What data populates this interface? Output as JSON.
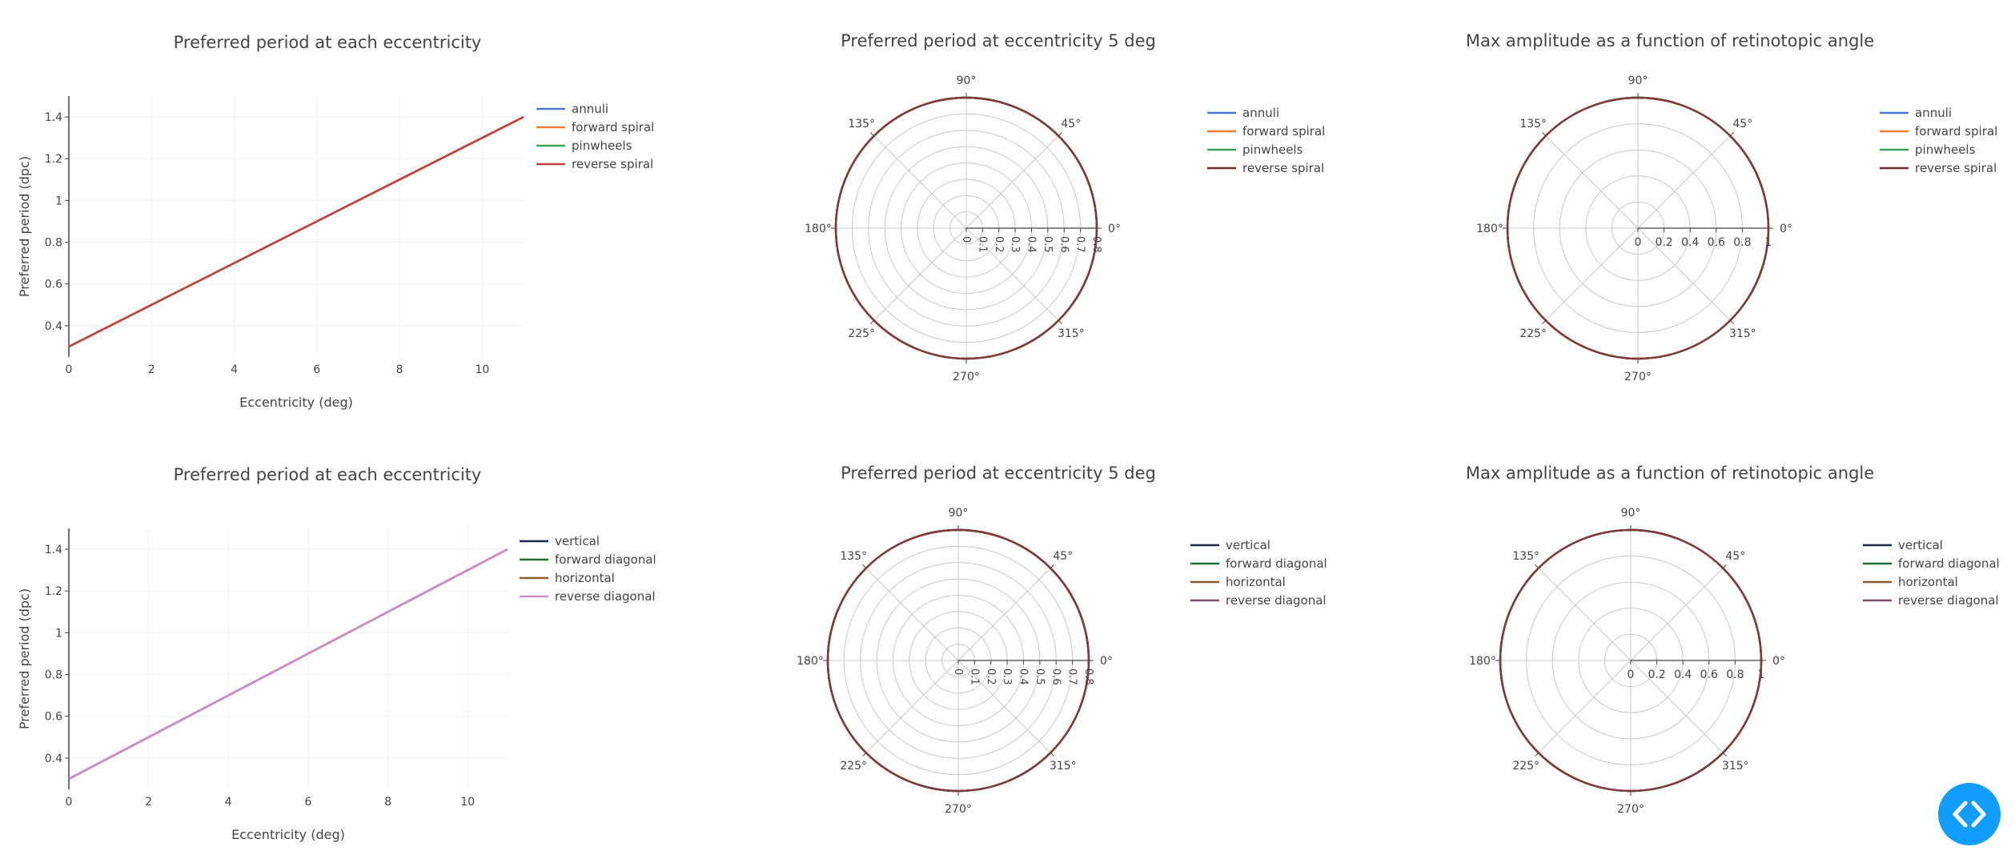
{
  "colors": {
    "grid_cart": "#eeeeee",
    "grid_polar": "#c8c8c8",
    "axis": "#444444",
    "circle_edge": "#7f3b3b",
    "code_button": "#119dff"
  },
  "code_button": {
    "icon": "code-brackets-icon"
  },
  "chart_data": [
    {
      "type": "line",
      "title": "Preferred period at each eccentricity",
      "xlabel": "Eccentricity (deg)",
      "ylabel": "Preferred period (dpc)",
      "xlim": [
        0,
        11
      ],
      "ylim": [
        0.25,
        1.5
      ],
      "xticks": [
        "0",
        "2",
        "4",
        "6",
        "8",
        "10"
      ],
      "yticks": [
        "0.4",
        "0.6",
        "0.8",
        "1",
        "1.2",
        "1.4"
      ],
      "grid": true,
      "legend": "right",
      "x": [
        0,
        11
      ],
      "series": [
        {
          "name": "annuli",
          "color": "#4c72d8",
          "values": [
            0.3,
            1.4
          ]
        },
        {
          "name": "forward spiral",
          "color": "#ee7d32",
          "values": [
            0.3,
            1.4
          ]
        },
        {
          "name": "pinwheels",
          "color": "#3fa45a",
          "values": [
            0.3,
            1.4
          ]
        },
        {
          "name": "reverse spiral",
          "color": "#c3413b",
          "values": [
            0.3,
            1.4
          ]
        }
      ]
    },
    {
      "type": "polar",
      "title": "Preferred period at eccentricity 5 deg",
      "radial_ticks": [
        "0",
        "0.1",
        "0.2",
        "0.3",
        "0.4",
        "0.5",
        "0.6",
        "0.7",
        "0.8"
      ],
      "radial_range": [
        0,
        0.8
      ],
      "angular_ticks": [
        "0°",
        "45°",
        "90°",
        "135°",
        "180°",
        "225°",
        "270°",
        "315°"
      ],
      "legend": "right",
      "series": [
        {
          "name": "annuli",
          "color": "#4c72d8",
          "r": 0.8
        },
        {
          "name": "forward spiral",
          "color": "#ee7d32",
          "r": 0.8
        },
        {
          "name": "pinwheels",
          "color": "#3fa45a",
          "r": 0.8
        },
        {
          "name": "reverse spiral",
          "color": "#6b2f2f",
          "r": 0.8
        }
      ]
    },
    {
      "type": "polar",
      "title": "Max amplitude as a function of retinotopic angle",
      "radial_ticks": [
        "0",
        "0.2",
        "0.4",
        "0.6",
        "0.8",
        "1"
      ],
      "radial_range": [
        0,
        1
      ],
      "angular_ticks": [
        "0°",
        "45°",
        "90°",
        "135°",
        "180°",
        "225°",
        "270°",
        "315°"
      ],
      "legend": "right",
      "series": [
        {
          "name": "annuli",
          "color": "#4c72d8",
          "r": 1
        },
        {
          "name": "forward spiral",
          "color": "#ee7d32",
          "r": 1
        },
        {
          "name": "pinwheels",
          "color": "#3fa45a",
          "r": 1
        },
        {
          "name": "reverse spiral",
          "color": "#6b2f2f",
          "r": 1
        }
      ]
    },
    {
      "type": "line",
      "title": "Preferred period at each eccentricity",
      "xlabel": "Eccentricity (deg)",
      "ylabel": "Preferred period (dpc)",
      "xlim": [
        0,
        11
      ],
      "ylim": [
        0.25,
        1.5
      ],
      "xticks": [
        "0",
        "2",
        "4",
        "6",
        "8",
        "10"
      ],
      "yticks": [
        "0.4",
        "0.6",
        "0.8",
        "1",
        "1.2",
        "1.4"
      ],
      "grid": true,
      "legend": "right",
      "x": [
        0,
        11
      ],
      "series": [
        {
          "name": "vertical",
          "color": "#1f2a44",
          "values": [
            0.3,
            1.4
          ]
        },
        {
          "name": "forward diagonal",
          "color": "#1e6b33",
          "values": [
            0.3,
            1.4
          ]
        },
        {
          "name": "horizontal",
          "color": "#8b5a2b",
          "values": [
            0.3,
            1.4
          ]
        },
        {
          "name": "reverse diagonal",
          "color": "#d18ec8",
          "values": [
            0.3,
            1.4
          ]
        }
      ]
    },
    {
      "type": "polar",
      "title": "Preferred period at eccentricity 5 deg",
      "radial_ticks": [
        "0",
        "0.1",
        "0.2",
        "0.3",
        "0.4",
        "0.5",
        "0.6",
        "0.7",
        "0.8"
      ],
      "radial_range": [
        0,
        0.8
      ],
      "angular_ticks": [
        "0°",
        "45°",
        "90°",
        "135°",
        "180°",
        "225°",
        "270°",
        "315°"
      ],
      "legend": "right",
      "series": [
        {
          "name": "vertical",
          "color": "#1f2a44",
          "r": 0.8
        },
        {
          "name": "forward diagonal",
          "color": "#1e6b33",
          "r": 0.8
        },
        {
          "name": "horizontal",
          "color": "#8b5a2b",
          "r": 0.8
        },
        {
          "name": "reverse diagonal",
          "color": "#7a4a6a",
          "r": 0.8
        }
      ]
    },
    {
      "type": "polar",
      "title": "Max amplitude as a function of retinotopic angle",
      "radial_ticks": [
        "0",
        "0.2",
        "0.4",
        "0.6",
        "0.8",
        "1"
      ],
      "radial_range": [
        0,
        1
      ],
      "angular_ticks": [
        "0°",
        "45°",
        "90°",
        "135°",
        "180°",
        "225°",
        "270°",
        "315°"
      ],
      "legend": "right",
      "series": [
        {
          "name": "vertical",
          "color": "#1f2a44",
          "r": 1
        },
        {
          "name": "forward diagonal",
          "color": "#1e6b33",
          "r": 1
        },
        {
          "name": "horizontal",
          "color": "#8b5a2b",
          "r": 1
        },
        {
          "name": "reverse diagonal",
          "color": "#7a4a6a",
          "r": 1
        }
      ]
    }
  ]
}
